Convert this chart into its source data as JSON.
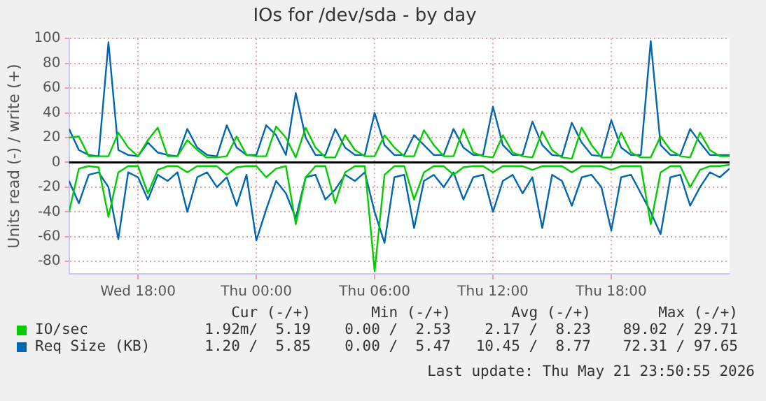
{
  "chart_data": {
    "type": "line",
    "title": "IOs for /dev/sda - by day",
    "ylabel": "Units read (-) / write (+)",
    "x": [
      "2026-05-20T14:30",
      "2026-05-20T15:00",
      "2026-05-20T15:30",
      "2026-05-20T16:00",
      "2026-05-20T16:30",
      "2026-05-20T17:00",
      "2026-05-20T17:30",
      "2026-05-20T18:00",
      "2026-05-20T18:30",
      "2026-05-20T19:00",
      "2026-05-20T19:30",
      "2026-05-20T20:00",
      "2026-05-20T20:30",
      "2026-05-20T21:00",
      "2026-05-20T21:30",
      "2026-05-20T22:00",
      "2026-05-20T22:30",
      "2026-05-20T23:00",
      "2026-05-20T23:30",
      "2026-05-21T00:00",
      "2026-05-21T00:30",
      "2026-05-21T01:00",
      "2026-05-21T01:30",
      "2026-05-21T02:00",
      "2026-05-21T02:30",
      "2026-05-21T03:00",
      "2026-05-21T03:30",
      "2026-05-21T04:00",
      "2026-05-21T04:30",
      "2026-05-21T05:00",
      "2026-05-21T05:30",
      "2026-05-21T06:00",
      "2026-05-21T06:30",
      "2026-05-21T07:00",
      "2026-05-21T07:30",
      "2026-05-21T08:00",
      "2026-05-21T08:30",
      "2026-05-21T09:00",
      "2026-05-21T09:30",
      "2026-05-21T10:00",
      "2026-05-21T10:30",
      "2026-05-21T11:00",
      "2026-05-21T11:30",
      "2026-05-21T12:00",
      "2026-05-21T12:30",
      "2026-05-21T13:00",
      "2026-05-21T13:30",
      "2026-05-21T14:00",
      "2026-05-21T14:30",
      "2026-05-21T15:00",
      "2026-05-21T15:30",
      "2026-05-21T16:00",
      "2026-05-21T16:30",
      "2026-05-21T17:00",
      "2026-05-21T17:30",
      "2026-05-21T18:00",
      "2026-05-21T18:30",
      "2026-05-21T19:00",
      "2026-05-21T19:30",
      "2026-05-21T20:00",
      "2026-05-21T20:30",
      "2026-05-21T21:00",
      "2026-05-21T21:30",
      "2026-05-21T22:00",
      "2026-05-21T22:30",
      "2026-05-21T23:00",
      "2026-05-21T23:30",
      "2026-05-22T00:00"
    ],
    "series": [
      {
        "name": "IO/sec",
        "color": "#00cc00",
        "values": [
          20,
          21,
          5,
          5,
          5,
          24,
          12,
          5,
          18,
          28,
          5,
          5,
          18,
          10,
          4,
          4,
          5,
          21,
          6,
          5,
          5,
          29,
          20,
          4,
          28,
          12,
          4,
          4,
          22,
          10,
          5,
          5,
          22,
          12,
          5,
          5,
          26,
          14,
          5,
          5,
          27,
          8,
          5,
          4,
          22,
          8,
          5,
          4,
          25,
          10,
          4,
          3,
          28,
          14,
          4,
          4,
          24,
          8,
          4,
          4,
          21,
          10,
          5,
          4,
          24,
          10,
          5,
          5
        ]
      },
      {
        "color": "#00cc00",
        "values": [
          -40,
          -5,
          -3,
          -4,
          -44,
          -8,
          -3,
          -3,
          -25,
          -6,
          -3,
          -3,
          -8,
          -3,
          -3,
          -3,
          -10,
          -4,
          -3,
          -3,
          -12,
          -5,
          -3,
          -50,
          -12,
          -3,
          -3,
          -33,
          -8,
          -3,
          -3,
          -88,
          -10,
          -3,
          -3,
          -30,
          -8,
          -3,
          -3,
          -10,
          -4,
          -3,
          -3,
          -8,
          -3,
          -3,
          -3,
          -6,
          -3,
          -3,
          -3,
          -8,
          -3,
          -3,
          -3,
          -6,
          -3,
          -3,
          -3,
          -50,
          -8,
          -3,
          -3,
          -20,
          -6,
          -3,
          -3,
          -2
        ]
      },
      {
        "name": "Req Size (KB)",
        "color": "#0066b3",
        "values": [
          27,
          10,
          6,
          5,
          97,
          10,
          6,
          5,
          16,
          8,
          6,
          5,
          27,
          12,
          6,
          5,
          30,
          12,
          6,
          6,
          30,
          22,
          6,
          56,
          20,
          6,
          6,
          27,
          12,
          6,
          6,
          40,
          14,
          6,
          6,
          22,
          14,
          6,
          6,
          27,
          12,
          6,
          6,
          45,
          14,
          6,
          6,
          33,
          14,
          6,
          5,
          32,
          16,
          6,
          5,
          34,
          12,
          6,
          6,
          98,
          14,
          6,
          6,
          27,
          16,
          6,
          6,
          6
        ]
      },
      {
        "color": "#0066b3",
        "values": [
          -15,
          -33,
          -10,
          -8,
          -20,
          -62,
          -8,
          -12,
          -30,
          -10,
          -15,
          -8,
          -40,
          -12,
          -8,
          -20,
          -12,
          -35,
          -10,
          -63,
          -38,
          -15,
          -25,
          -45,
          -12,
          -10,
          -30,
          -22,
          -10,
          -15,
          -8,
          -40,
          -65,
          -12,
          -10,
          -53,
          -15,
          -10,
          -20,
          -8,
          -30,
          -12,
          -10,
          -40,
          -15,
          -10,
          -25,
          -12,
          -53,
          -10,
          -15,
          -35,
          -12,
          -10,
          -20,
          -55,
          -12,
          -10,
          -25,
          -40,
          -58,
          -12,
          -10,
          -35,
          -20,
          -8,
          -12,
          -5
        ]
      }
    ],
    "xlim": [
      "2026-05-20T14:30",
      "2026-05-22T00:00"
    ],
    "xticks": [
      {
        "value": "2026-05-20T18:00",
        "label": "Wed 18:00"
      },
      {
        "value": "2026-05-21T00:00",
        "label": "Thu 00:00"
      },
      {
        "value": "2026-05-21T06:00",
        "label": "Thu 06:00"
      },
      {
        "value": "2026-05-21T12:00",
        "label": "Thu 12:00"
      },
      {
        "value": "2026-05-21T18:00",
        "label": "Thu 18:00"
      }
    ],
    "ylim": [
      -90,
      100
    ],
    "yticks": [
      -80,
      -60,
      -40,
      -20,
      0,
      20,
      40,
      60,
      80,
      100
    ],
    "ref_lines": [
      {
        "axis": "y",
        "value": 0,
        "color": "#000000"
      }
    ],
    "grid": true,
    "legend": "bottom",
    "marker": "none",
    "line_style": "solid",
    "annotations": [
      "Cur (-/+)",
      "Min (-/+)",
      "Avg (-/+)",
      "Max (-/+)",
      "1.92m/  5.19",
      "0.00 /  2.53",
      "2.17 /  8.23",
      "89.02 / 29.71",
      "1.20 /  5.85",
      "0.00 /  5.47",
      "10.45 /  8.77",
      "72.31 / 97.65",
      "Last update: Thu May 21 23:50:55 2026"
    ]
  }
}
